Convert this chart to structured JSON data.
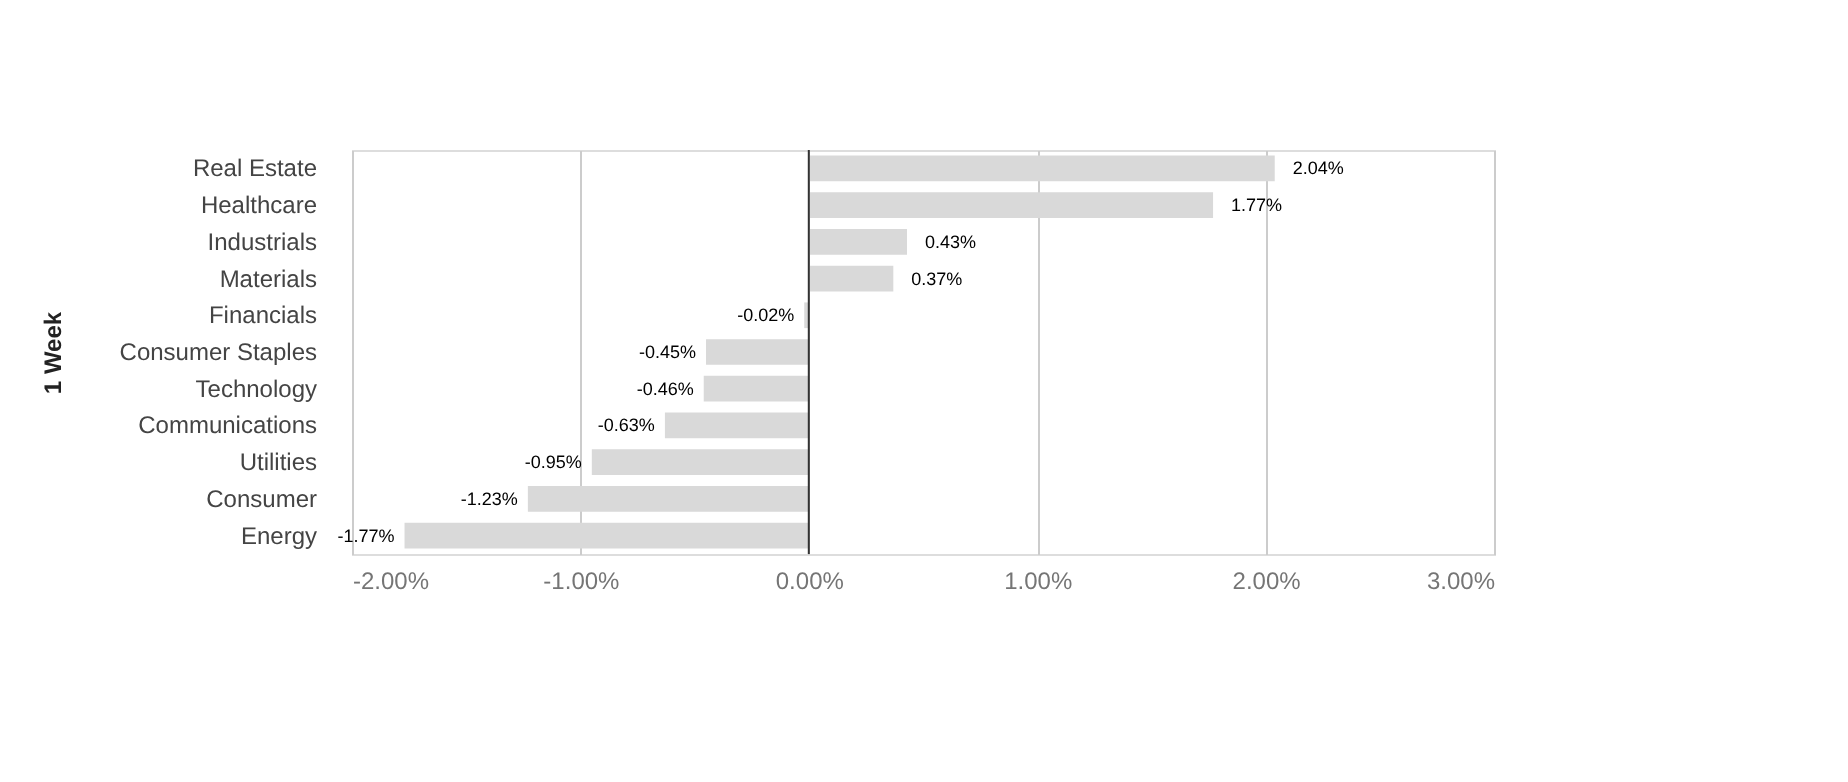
{
  "chart_data": {
    "type": "bar",
    "orientation": "horizontal",
    "ylabel": "1 Week",
    "categories": [
      "Real Estate",
      "Healthcare",
      "Industrials",
      "Materials",
      "Financials",
      "Consumer Staples",
      "Technology",
      "Communications",
      "Utilities",
      "Consumer",
      "Energy"
    ],
    "values": [
      2.04,
      1.77,
      0.43,
      0.37,
      -0.02,
      -0.45,
      -0.46,
      -0.63,
      -0.95,
      -1.23,
      -1.77
    ],
    "value_labels": [
      "2.04%",
      "1.77%",
      "0.43%",
      "0.37%",
      "-0.02%",
      "-0.45%",
      "-0.46%",
      "-0.63%",
      "-0.95%",
      "-1.23%",
      "-1.77%"
    ],
    "color": "#d9d9d9",
    "xlim": [
      -2,
      3
    ],
    "xticks": [
      {
        "value": -2,
        "label": "-2.00%"
      },
      {
        "value": -1,
        "label": "-1.00%"
      },
      {
        "value": 0,
        "label": "0.00%"
      },
      {
        "value": 1,
        "label": "1.00%"
      },
      {
        "value": 2,
        "label": "2.00%"
      },
      {
        "value": 3,
        "label": "3.00%"
      }
    ],
    "grid": "x",
    "ref_lines": [
      {
        "axis": "x",
        "value": 0,
        "label": null,
        "color": "#333333"
      }
    ]
  }
}
